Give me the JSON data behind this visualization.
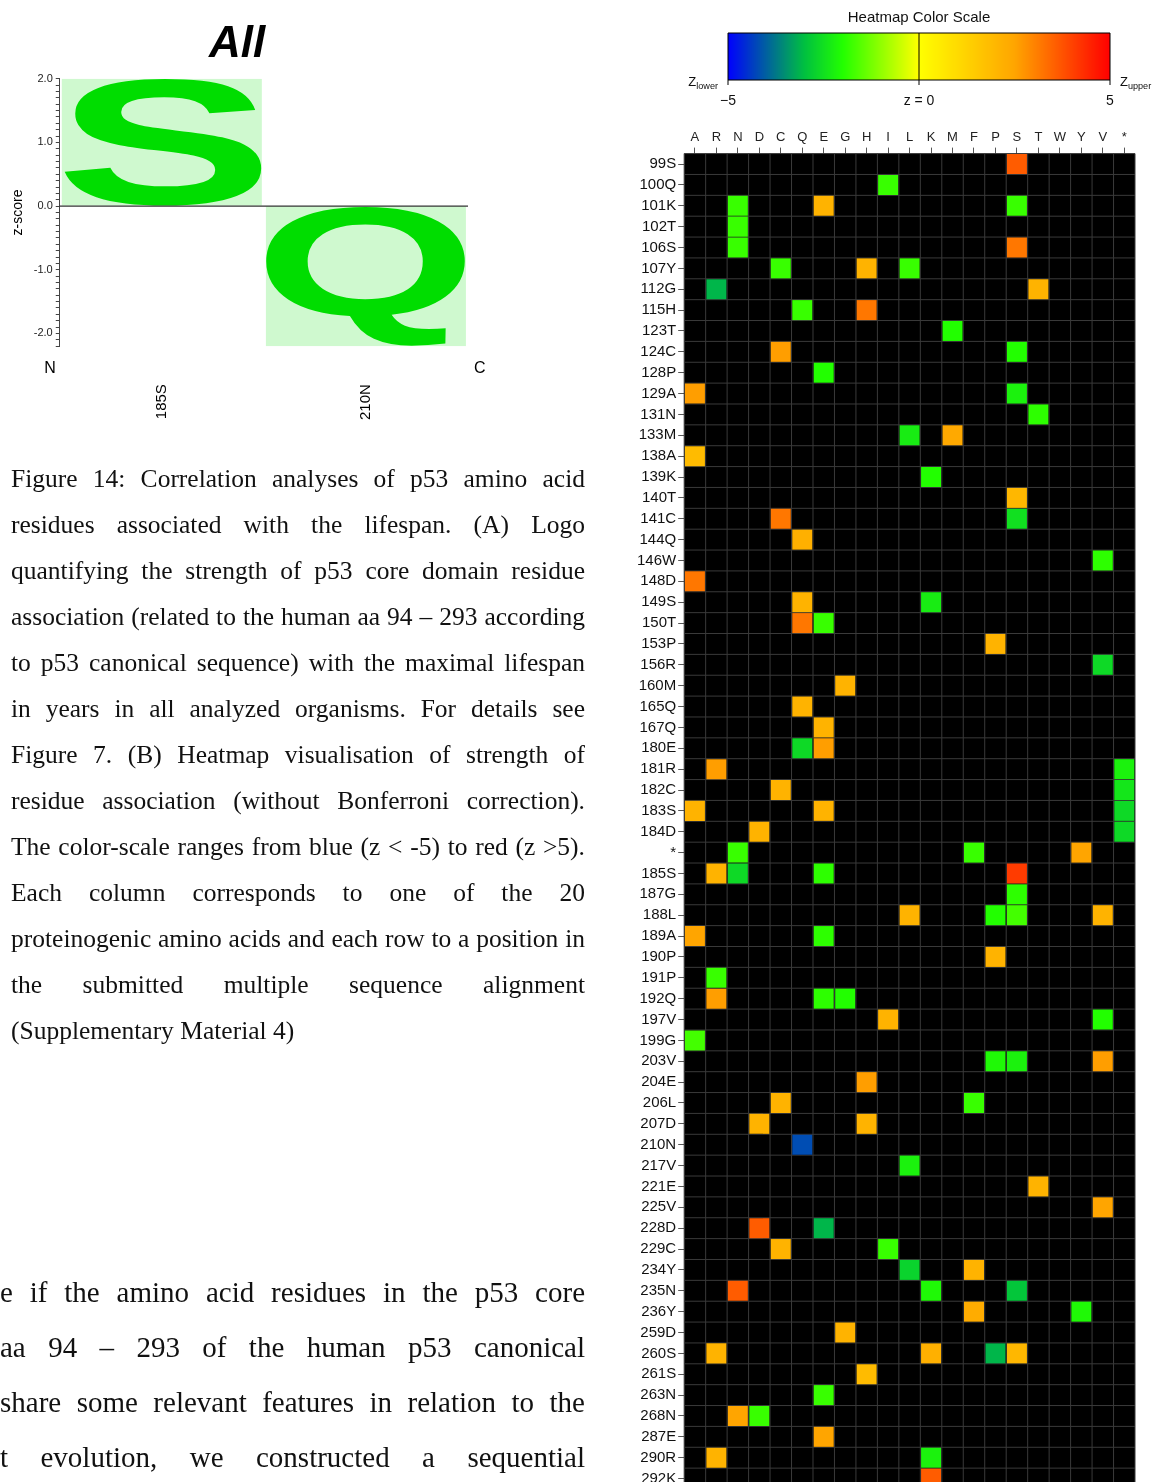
{
  "chart_data": [
    {
      "type": "bar",
      "title": "All",
      "ylabel": "z-score",
      "categories": [
        "185S",
        "210N"
      ],
      "values": [
        2.0,
        -2.2
      ],
      "value_labels": [
        "S",
        "Q"
      ],
      "color": "#00dd00",
      "ylim": [
        -2.2,
        2.0
      ],
      "yticks": [
        {
          "value": -2.2,
          "label": null
        },
        {
          "value": -2.1,
          "label": null
        },
        {
          "value": -2.0,
          "label": "-2.0"
        },
        {
          "value": -1.9,
          "label": null
        },
        {
          "value": -1.8,
          "label": null
        },
        {
          "value": -1.7,
          "label": null
        },
        {
          "value": -1.6,
          "label": null
        },
        {
          "value": -1.5,
          "label": null
        },
        {
          "value": -1.4,
          "label": null
        },
        {
          "value": -1.3,
          "label": null
        },
        {
          "value": -1.2,
          "label": null
        },
        {
          "value": -1.1,
          "label": null
        },
        {
          "value": -1.0,
          "label": "-1.0"
        },
        {
          "value": -0.9,
          "label": null
        },
        {
          "value": -0.8,
          "label": null
        },
        {
          "value": -0.7,
          "label": null
        },
        {
          "value": -0.6,
          "label": null
        },
        {
          "value": -0.5,
          "label": null
        },
        {
          "value": -0.4,
          "label": null
        },
        {
          "value": -0.3,
          "label": null
        },
        {
          "value": -0.2,
          "label": null
        },
        {
          "value": -0.1,
          "label": null
        },
        {
          "value": 0,
          "label": "0.0"
        },
        {
          "value": 0.1,
          "label": null
        },
        {
          "value": 0.2,
          "label": null
        },
        {
          "value": 0.3,
          "label": null
        },
        {
          "value": 0.4,
          "label": null
        },
        {
          "value": 0.5,
          "label": null
        },
        {
          "value": 0.6,
          "label": null
        },
        {
          "value": 0.7,
          "label": null
        },
        {
          "value": 0.8,
          "label": null
        },
        {
          "value": 0.9,
          "label": null
        },
        {
          "value": 1.0,
          "label": "1.0"
        },
        {
          "value": 1.1,
          "label": null
        },
        {
          "value": 1.2,
          "label": null
        },
        {
          "value": 1.3,
          "label": null
        },
        {
          "value": 1.4,
          "label": null
        },
        {
          "value": 1.5,
          "label": null
        },
        {
          "value": 1.6,
          "label": null
        },
        {
          "value": 1.7,
          "label": null
        },
        {
          "value": 1.8,
          "label": null
        },
        {
          "value": 1.9,
          "label": null
        },
        {
          "value": 2.0,
          "label": "2.0"
        }
      ],
      "annotations": [
        "N",
        "C",
        "Figure 14: Correlation analyses of p53 amino acid residues associated with the lifespan. (A) Logo quantifying the strength of p53 core domain residue association (related to the human aa 94 – 293 according to p53 canonical sequence) with the maximal lifespan in years in all analyzed organisms. For details see Figure 7. (B) Heatmap visualisation of strength of residue association (without Bonferroni correction). The color-scale ranges from blue (z < -5) to red (z >5). Each column corresponds to one of the 20 proteinogenic amino acids and each row to a position in the submitted multiple sequence alignment (Supplementary Material 4)",
        "e if the amino acid residues in the p53 core",
        "aa 94 – 293 of the human p53 canonical",
        "share some relevant features in relation to the",
        "t evolution, we constructed a sequential"
      ]
    },
    {
      "type": "heatmap",
      "clabel": "Heatmap Color Scale",
      "clim": [
        -5,
        5
      ],
      "cticks": [
        {
          "value": -5,
          "label": "−5"
        },
        {
          "value": 0,
          "label": "z = 0"
        },
        5
      ],
      "grid": true,
      "annotations": [
        "Z$_{lower}$",
        "Z$_{upper}$"
      ],
      "categories": [
        "A",
        "R",
        "N",
        "D",
        "C",
        "Q",
        "E",
        "G",
        "H",
        "I",
        "L",
        "K",
        "M",
        "F",
        "P",
        "S",
        "T",
        "W",
        "Y",
        "V",
        "*"
      ],
      "y_categories": [
        "99S",
        "100Q",
        "101K",
        "102T",
        "106S",
        "107Y",
        "112G",
        "115H",
        "123T",
        "124C",
        "128P",
        "129A",
        "131N",
        "133M",
        "138A",
        "139K",
        "140T",
        "141C",
        "144Q",
        "146W",
        "148D",
        "149S",
        "150T",
        "153P",
        "156R",
        "160M",
        "165Q",
        "167Q",
        "180E",
        "181R",
        "182C",
        "183S",
        "184D",
        "*",
        "185S",
        "187G",
        "188L",
        "189A",
        "190P",
        "191P",
        "192Q",
        "197V",
        "199G",
        "203V",
        "204E",
        "206L",
        "207D",
        "210N",
        "217V",
        "221E",
        "225V",
        "228D",
        "229C",
        "234Y",
        "235N",
        "236Y",
        "259D",
        "260S",
        "261S",
        "263N",
        "268N",
        "287E",
        "290R",
        "292K"
      ],
      "cells": [
        [
          null,
          null,
          null,
          null,
          null,
          null,
          null,
          null,
          null,
          null,
          null,
          null,
          null,
          null,
          null,
          3.6,
          null,
          null,
          null,
          null,
          null
        ],
        [
          null,
          null,
          null,
          null,
          null,
          null,
          null,
          null,
          null,
          -1.8,
          null,
          null,
          null,
          null,
          null,
          null,
          null,
          null,
          null,
          null,
          null
        ],
        [
          null,
          null,
          -1.8,
          null,
          null,
          null,
          2.1,
          null,
          null,
          null,
          null,
          null,
          null,
          null,
          null,
          -1.8,
          null,
          null,
          null,
          null,
          null
        ],
        [
          null,
          null,
          -1.8,
          null,
          null,
          null,
          null,
          null,
          null,
          null,
          null,
          null,
          null,
          null,
          null,
          null,
          null,
          null,
          null,
          null,
          null
        ],
        [
          null,
          null,
          -1.8,
          null,
          null,
          null,
          null,
          null,
          null,
          null,
          null,
          null,
          null,
          null,
          null,
          3.2,
          null,
          null,
          null,
          null,
          null
        ],
        [
          null,
          null,
          null,
          null,
          -1.8,
          null,
          null,
          null,
          2.1,
          null,
          -1.8,
          null,
          null,
          null,
          null,
          null,
          null,
          null,
          null,
          null,
          null
        ],
        [
          null,
          -3.1,
          null,
          null,
          null,
          null,
          null,
          null,
          null,
          null,
          null,
          null,
          null,
          null,
          null,
          null,
          2.1,
          null,
          null,
          null,
          null
        ],
        [
          null,
          null,
          null,
          null,
          null,
          -1.8,
          null,
          null,
          3.2,
          null,
          null,
          null,
          null,
          null,
          null,
          null,
          null,
          null,
          null,
          null,
          null
        ],
        [
          null,
          null,
          null,
          null,
          null,
          null,
          null,
          null,
          null,
          null,
          null,
          null,
          -2.0,
          null,
          null,
          null,
          null,
          null,
          null,
          null,
          null
        ],
        [
          null,
          null,
          null,
          null,
          2.6,
          null,
          null,
          null,
          null,
          null,
          null,
          null,
          null,
          null,
          null,
          -2.0,
          null,
          null,
          null,
          null,
          null
        ],
        [
          null,
          null,
          null,
          null,
          null,
          null,
          -2.0,
          null,
          null,
          null,
          null,
          null,
          null,
          null,
          null,
          null,
          null,
          null,
          null,
          null,
          null
        ],
        [
          2.6,
          null,
          null,
          null,
          null,
          null,
          null,
          null,
          null,
          null,
          null,
          null,
          null,
          null,
          null,
          -2.2,
          null,
          null,
          null,
          null,
          null
        ],
        [
          null,
          null,
          null,
          null,
          null,
          null,
          null,
          null,
          null,
          null,
          null,
          null,
          null,
          null,
          null,
          null,
          -1.9,
          null,
          null,
          null,
          null
        ],
        [
          null,
          null,
          null,
          null,
          null,
          null,
          null,
          null,
          null,
          null,
          -2.3,
          null,
          2.4,
          null,
          null,
          null,
          null,
          null,
          null,
          null,
          null
        ],
        [
          1.9,
          null,
          null,
          null,
          null,
          null,
          null,
          null,
          null,
          null,
          null,
          null,
          null,
          null,
          null,
          null,
          null,
          null,
          null,
          null,
          null
        ],
        [
          null,
          null,
          null,
          null,
          null,
          null,
          null,
          null,
          null,
          null,
          null,
          -2.0,
          null,
          null,
          null,
          null,
          null,
          null,
          null,
          null,
          null
        ],
        [
          null,
          null,
          null,
          null,
          null,
          null,
          null,
          null,
          null,
          null,
          null,
          null,
          null,
          null,
          null,
          2.0,
          null,
          null,
          null,
          null,
          null
        ],
        [
          null,
          null,
          null,
          null,
          3.2,
          null,
          null,
          null,
          null,
          null,
          null,
          null,
          null,
          null,
          null,
          -2.5,
          null,
          null,
          null,
          null,
          null
        ],
        [
          null,
          null,
          null,
          null,
          null,
          2.2,
          null,
          null,
          null,
          null,
          null,
          null,
          null,
          null,
          null,
          null,
          null,
          null,
          null,
          null,
          null
        ],
        [
          null,
          null,
          null,
          null,
          null,
          null,
          null,
          null,
          null,
          null,
          null,
          null,
          null,
          null,
          null,
          null,
          null,
          null,
          null,
          -1.9,
          null
        ],
        [
          3.2,
          null,
          null,
          null,
          null,
          null,
          null,
          null,
          null,
          null,
          null,
          null,
          null,
          null,
          null,
          null,
          null,
          null,
          null,
          null,
          null
        ],
        [
          null,
          null,
          null,
          null,
          null,
          2.1,
          null,
          null,
          null,
          null,
          null,
          -2.3,
          null,
          null,
          null,
          null,
          null,
          null,
          null,
          null,
          null
        ],
        [
          null,
          null,
          null,
          null,
          null,
          3.2,
          -1.8,
          null,
          null,
          null,
          null,
          null,
          null,
          null,
          null,
          null,
          null,
          null,
          null,
          null,
          null
        ],
        [
          null,
          null,
          null,
          null,
          null,
          null,
          null,
          null,
          null,
          null,
          null,
          null,
          null,
          null,
          2.1,
          null,
          null,
          null,
          null,
          null,
          null
        ],
        [
          null,
          null,
          null,
          null,
          null,
          null,
          null,
          null,
          null,
          null,
          null,
          null,
          null,
          null,
          null,
          null,
          null,
          null,
          null,
          -2.6,
          null
        ],
        [
          null,
          null,
          null,
          null,
          null,
          null,
          null,
          2.1,
          null,
          null,
          null,
          null,
          null,
          null,
          null,
          null,
          null,
          null,
          null,
          null,
          null
        ],
        [
          null,
          null,
          null,
          null,
          null,
          2.1,
          null,
          null,
          null,
          null,
          null,
          null,
          null,
          null,
          null,
          null,
          null,
          null,
          null,
          null,
          null
        ],
        [
          null,
          null,
          null,
          null,
          null,
          null,
          2.1,
          null,
          null,
          null,
          null,
          null,
          null,
          null,
          null,
          null,
          null,
          null,
          null,
          null,
          null
        ],
        [
          null,
          null,
          null,
          null,
          null,
          -2.6,
          2.6,
          null,
          null,
          null,
          null,
          null,
          null,
          null,
          null,
          null,
          null,
          null,
          null,
          null,
          null
        ],
        [
          null,
          2.6,
          null,
          null,
          null,
          null,
          null,
          null,
          null,
          null,
          null,
          null,
          null,
          null,
          null,
          null,
          null,
          null,
          null,
          null,
          -2.2
        ],
        [
          null,
          null,
          null,
          null,
          2.1,
          null,
          null,
          null,
          null,
          null,
          null,
          null,
          null,
          null,
          null,
          null,
          null,
          null,
          null,
          null,
          -2.4
        ],
        [
          2.1,
          null,
          null,
          null,
          null,
          null,
          2.1,
          null,
          null,
          null,
          null,
          null,
          null,
          null,
          null,
          null,
          null,
          null,
          null,
          null,
          -2.6
        ],
        [
          null,
          null,
          null,
          2.1,
          null,
          null,
          null,
          null,
          null,
          null,
          null,
          null,
          null,
          null,
          null,
          null,
          null,
          null,
          null,
          null,
          -2.6
        ],
        [
          null,
          null,
          -1.8,
          null,
          null,
          null,
          null,
          null,
          null,
          null,
          null,
          null,
          null,
          -1.8,
          null,
          null,
          null,
          null,
          2.5,
          null,
          null
        ],
        [
          null,
          2.1,
          -2.6,
          null,
          null,
          null,
          -1.9,
          null,
          null,
          null,
          null,
          null,
          null,
          null,
          null,
          4.1,
          null,
          null,
          null,
          null,
          null
        ],
        [
          null,
          null,
          null,
          null,
          null,
          null,
          null,
          null,
          null,
          null,
          null,
          null,
          null,
          null,
          null,
          -1.9,
          null,
          null,
          null,
          null,
          null
        ],
        [
          null,
          null,
          null,
          null,
          null,
          null,
          null,
          null,
          null,
          null,
          2.1,
          null,
          null,
          null,
          -2.0,
          -1.7,
          null,
          null,
          null,
          2.1,
          null
        ],
        [
          2.5,
          null,
          null,
          null,
          null,
          null,
          -1.9,
          null,
          null,
          null,
          null,
          null,
          null,
          null,
          null,
          null,
          null,
          null,
          null,
          null,
          null
        ],
        [
          null,
          null,
          null,
          null,
          null,
          null,
          null,
          null,
          null,
          null,
          null,
          null,
          null,
          null,
          2.1,
          null,
          null,
          null,
          null,
          null,
          null
        ],
        [
          null,
          -1.8,
          null,
          null,
          null,
          null,
          null,
          null,
          null,
          null,
          null,
          null,
          null,
          null,
          null,
          null,
          null,
          null,
          null,
          null,
          null
        ],
        [
          null,
          2.6,
          null,
          null,
          null,
          null,
          -1.9,
          -2.0,
          null,
          null,
          null,
          null,
          null,
          null,
          null,
          null,
          null,
          null,
          null,
          null,
          null
        ],
        [
          null,
          null,
          null,
          null,
          null,
          null,
          null,
          null,
          null,
          2.1,
          null,
          null,
          null,
          null,
          null,
          null,
          null,
          null,
          null,
          -2.0,
          null
        ],
        [
          -1.7,
          null,
          null,
          null,
          null,
          null,
          null,
          null,
          null,
          null,
          null,
          null,
          null,
          null,
          null,
          null,
          null,
          null,
          null,
          null,
          null
        ],
        [
          null,
          null,
          null,
          null,
          null,
          null,
          null,
          null,
          null,
          null,
          null,
          null,
          null,
          null,
          -2.1,
          -2.2,
          null,
          null,
          null,
          2.6,
          null
        ],
        [
          null,
          null,
          null,
          null,
          null,
          null,
          null,
          null,
          2.6,
          null,
          null,
          null,
          null,
          null,
          null,
          null,
          null,
          null,
          null,
          null,
          null
        ],
        [
          null,
          null,
          null,
          null,
          2.1,
          null,
          null,
          null,
          null,
          null,
          null,
          null,
          null,
          -1.8,
          null,
          null,
          null,
          null,
          null,
          null,
          null
        ],
        [
          null,
          null,
          null,
          2.1,
          null,
          null,
          null,
          null,
          2.1,
          null,
          null,
          null,
          null,
          null,
          null,
          null,
          null,
          null,
          null,
          null,
          null
        ],
        [
          null,
          null,
          null,
          null,
          null,
          -4.2,
          null,
          null,
          null,
          null,
          null,
          null,
          null,
          null,
          null,
          null,
          null,
          null,
          null,
          null,
          null
        ],
        [
          null,
          null,
          null,
          null,
          null,
          null,
          null,
          null,
          null,
          null,
          -2.2,
          null,
          null,
          null,
          null,
          null,
          null,
          null,
          null,
          null,
          null
        ],
        [
          null,
          null,
          null,
          null,
          null,
          null,
          null,
          null,
          null,
          null,
          null,
          null,
          null,
          null,
          null,
          null,
          2.1,
          null,
          null,
          null,
          null
        ],
        [
          null,
          null,
          null,
          null,
          null,
          null,
          null,
          null,
          null,
          null,
          null,
          null,
          null,
          null,
          null,
          null,
          null,
          null,
          null,
          2.5,
          null
        ],
        [
          null,
          null,
          null,
          3.6,
          null,
          null,
          -3.1,
          null,
          null,
          null,
          null,
          null,
          null,
          null,
          null,
          null,
          null,
          null,
          null,
          null,
          null
        ],
        [
          null,
          null,
          null,
          null,
          2.1,
          null,
          null,
          null,
          null,
          -1.8,
          null,
          null,
          null,
          null,
          null,
          null,
          null,
          null,
          null,
          null,
          null
        ],
        [
          null,
          null,
          null,
          null,
          null,
          null,
          null,
          null,
          null,
          null,
          -2.7,
          null,
          null,
          2.1,
          null,
          null,
          null,
          null,
          null,
          null,
          null
        ],
        [
          null,
          null,
          3.6,
          null,
          null,
          null,
          null,
          null,
          null,
          null,
          null,
          -2.1,
          null,
          null,
          null,
          -2.9,
          null,
          null,
          null,
          null,
          null
        ],
        [
          null,
          null,
          null,
          null,
          null,
          null,
          null,
          null,
          null,
          null,
          null,
          null,
          null,
          2.3,
          null,
          null,
          null,
          null,
          -2.1,
          null,
          null
        ],
        [
          null,
          null,
          null,
          null,
          null,
          null,
          null,
          2.1,
          null,
          null,
          null,
          null,
          null,
          null,
          null,
          null,
          null,
          null,
          null,
          null,
          null
        ],
        [
          null,
          2.1,
          null,
          null,
          null,
          null,
          null,
          null,
          null,
          null,
          null,
          2.2,
          null,
          null,
          -3.1,
          2.0,
          null,
          null,
          null,
          null,
          null
        ],
        [
          null,
          null,
          null,
          null,
          null,
          null,
          null,
          null,
          1.9,
          null,
          null,
          null,
          null,
          null,
          null,
          null,
          null,
          null,
          null,
          null,
          null
        ],
        [
          null,
          null,
          null,
          null,
          null,
          null,
          -1.8,
          null,
          null,
          null,
          null,
          null,
          null,
          null,
          null,
          null,
          null,
          null,
          null,
          null,
          null
        ],
        [
          null,
          null,
          2.5,
          -1.8,
          null,
          null,
          null,
          null,
          null,
          null,
          null,
          null,
          null,
          null,
          null,
          null,
          null,
          null,
          null,
          null,
          null
        ],
        [
          null,
          null,
          null,
          null,
          null,
          null,
          2.5,
          null,
          null,
          null,
          null,
          null,
          null,
          null,
          null,
          null,
          null,
          null,
          null,
          null,
          null
        ],
        [
          null,
          2.1,
          null,
          null,
          null,
          null,
          null,
          null,
          null,
          null,
          null,
          -2.2,
          null,
          null,
          null,
          null,
          null,
          null,
          null,
          null,
          null
        ],
        [
          null,
          null,
          null,
          null,
          null,
          null,
          null,
          null,
          null,
          null,
          null,
          3.6,
          null,
          null,
          null,
          null,
          null,
          null,
          null,
          null,
          null
        ]
      ]
    }
  ]
}
